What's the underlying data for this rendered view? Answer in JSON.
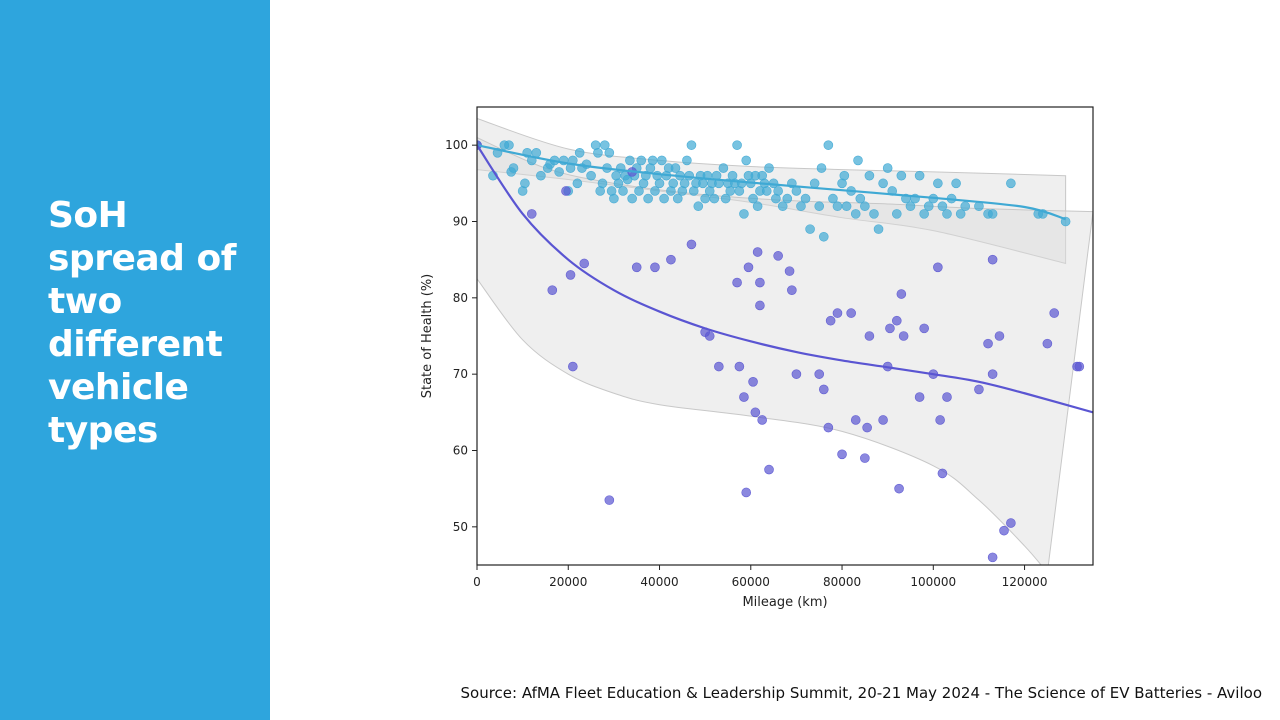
{
  "slide": {
    "title_lines": [
      "SoH",
      "spread of",
      "two",
      "different",
      "vehicle",
      "types"
    ],
    "source": "Source: AfMA Fleet Education & Leadership Summit, 20-21 May 2024 - The Science of EV Batteries - Aviloo"
  },
  "colors": {
    "panel": "#2ea5dd",
    "series_a": "#3fa9d4",
    "series_b": "#5a55d2",
    "band": "#dcdcdc"
  },
  "chart_data": {
    "type": "scatter",
    "xlabel": "Mileage (km)",
    "ylabel": "State of Health (%)",
    "xlim": [
      0,
      135000
    ],
    "ylim": [
      45,
      105
    ],
    "xticks": [
      0,
      20000,
      40000,
      60000,
      80000,
      100000,
      120000
    ],
    "yticks": [
      50,
      60,
      70,
      80,
      90,
      100
    ],
    "grid": false,
    "legend": "none",
    "series": [
      {
        "color": "#3fa9d4",
        "trend": [
          [
            0,
            100
          ],
          [
            20000,
            97.6
          ],
          [
            40000,
            96.2
          ],
          [
            60000,
            95.1
          ],
          [
            80000,
            94.1
          ],
          [
            100000,
            93.1
          ],
          [
            120000,
            91.9
          ],
          [
            129000,
            90.3
          ]
        ],
        "band_upper": [
          [
            0,
            103.5
          ],
          [
            20000,
            99.5
          ],
          [
            40000,
            98
          ],
          [
            60000,
            97.2
          ],
          [
            80000,
            96.8
          ],
          [
            100000,
            96.5
          ],
          [
            129000,
            96
          ]
        ],
        "band_lower": [
          [
            0,
            96.8
          ],
          [
            20000,
            95.5
          ],
          [
            40000,
            94
          ],
          [
            60000,
            92.5
          ],
          [
            80000,
            90.5
          ],
          [
            100000,
            88.8
          ],
          [
            129000,
            84.5
          ]
        ],
        "points": [
          [
            0,
            100
          ],
          [
            3500,
            96
          ],
          [
            4500,
            99
          ],
          [
            6000,
            100
          ],
          [
            7000,
            100
          ],
          [
            7500,
            96.5
          ],
          [
            8000,
            97
          ],
          [
            10000,
            94
          ],
          [
            10500,
            95
          ],
          [
            11000,
            99
          ],
          [
            12000,
            98
          ],
          [
            13000,
            99
          ],
          [
            14000,
            96
          ],
          [
            15500,
            97
          ],
          [
            16000,
            97.5
          ],
          [
            17000,
            98
          ],
          [
            18000,
            96.5
          ],
          [
            19000,
            98
          ],
          [
            20000,
            94
          ],
          [
            20500,
            97
          ],
          [
            21000,
            98
          ],
          [
            22000,
            95
          ],
          [
            22500,
            99
          ],
          [
            23000,
            97
          ],
          [
            24000,
            97.5
          ],
          [
            25000,
            96
          ],
          [
            26000,
            100
          ],
          [
            26500,
            99
          ],
          [
            27000,
            94
          ],
          [
            27500,
            95
          ],
          [
            28000,
            100
          ],
          [
            28500,
            97
          ],
          [
            29000,
            99
          ],
          [
            29500,
            94
          ],
          [
            30000,
            93
          ],
          [
            30500,
            96
          ],
          [
            31000,
            95
          ],
          [
            31500,
            97
          ],
          [
            32000,
            94
          ],
          [
            32500,
            96
          ],
          [
            33000,
            95.5
          ],
          [
            33500,
            98
          ],
          [
            34000,
            93
          ],
          [
            34500,
            96
          ],
          [
            35000,
            97
          ],
          [
            35500,
            94
          ],
          [
            36000,
            98
          ],
          [
            36500,
            95
          ],
          [
            37000,
            96
          ],
          [
            37500,
            93
          ],
          [
            38000,
            97
          ],
          [
            38500,
            98
          ],
          [
            39000,
            94
          ],
          [
            39500,
            96
          ],
          [
            40000,
            95
          ],
          [
            40500,
            98
          ],
          [
            41000,
            93
          ],
          [
            41500,
            96
          ],
          [
            42000,
            97
          ],
          [
            42500,
            94
          ],
          [
            43000,
            95
          ],
          [
            43500,
            97
          ],
          [
            44000,
            93
          ],
          [
            44500,
            96
          ],
          [
            45000,
            94
          ],
          [
            45500,
            95
          ],
          [
            46000,
            98
          ],
          [
            46500,
            96
          ],
          [
            47000,
            100
          ],
          [
            47500,
            94
          ],
          [
            48000,
            95
          ],
          [
            48500,
            92
          ],
          [
            49000,
            96
          ],
          [
            49500,
            95
          ],
          [
            50000,
            93
          ],
          [
            50500,
            96
          ],
          [
            51000,
            94
          ],
          [
            51500,
            95
          ],
          [
            52000,
            93
          ],
          [
            52500,
            96
          ],
          [
            53000,
            95
          ],
          [
            54000,
            97
          ],
          [
            54500,
            93
          ],
          [
            55000,
            95
          ],
          [
            55500,
            94
          ],
          [
            56000,
            96
          ],
          [
            56500,
            95
          ],
          [
            57000,
            100
          ],
          [
            57500,
            94
          ],
          [
            58000,
            95
          ],
          [
            58500,
            91
          ],
          [
            59000,
            98
          ],
          [
            59500,
            96
          ],
          [
            60000,
            95
          ],
          [
            60500,
            93
          ],
          [
            61000,
            96
          ],
          [
            61500,
            92
          ],
          [
            62000,
            94
          ],
          [
            62500,
            96
          ],
          [
            63000,
            95
          ],
          [
            63500,
            94
          ],
          [
            64000,
            97
          ],
          [
            65000,
            95
          ],
          [
            65500,
            93
          ],
          [
            66000,
            94
          ],
          [
            67000,
            92
          ],
          [
            68000,
            93
          ],
          [
            69000,
            95
          ],
          [
            70000,
            94
          ],
          [
            71000,
            92
          ],
          [
            72000,
            93
          ],
          [
            73000,
            89
          ],
          [
            74000,
            95
          ],
          [
            75000,
            92
          ],
          [
            75500,
            97
          ],
          [
            76000,
            88
          ],
          [
            77000,
            100
          ],
          [
            78000,
            93
          ],
          [
            79000,
            92
          ],
          [
            80000,
            95
          ],
          [
            80500,
            96
          ],
          [
            81000,
            92
          ],
          [
            82000,
            94
          ],
          [
            83000,
            91
          ],
          [
            83500,
            98
          ],
          [
            84000,
            93
          ],
          [
            85000,
            92
          ],
          [
            86000,
            96
          ],
          [
            87000,
            91
          ],
          [
            88000,
            89
          ],
          [
            89000,
            95
          ],
          [
            90000,
            97
          ],
          [
            91000,
            94
          ],
          [
            92000,
            91
          ],
          [
            93000,
            96
          ],
          [
            94000,
            93
          ],
          [
            95000,
            92
          ],
          [
            96000,
            93
          ],
          [
            97000,
            96
          ],
          [
            98000,
            91
          ],
          [
            99000,
            92
          ],
          [
            100000,
            93
          ],
          [
            101000,
            95
          ],
          [
            102000,
            92
          ],
          [
            103000,
            91
          ],
          [
            104000,
            93
          ],
          [
            105000,
            95
          ],
          [
            106000,
            91
          ],
          [
            107000,
            92
          ],
          [
            110000,
            92
          ],
          [
            112000,
            91
          ],
          [
            113000,
            91
          ],
          [
            117000,
            95
          ],
          [
            123000,
            91
          ],
          [
            124000,
            91
          ],
          [
            129000,
            90
          ]
        ]
      },
      {
        "color": "#5a55d2",
        "trend": [
          [
            0,
            100
          ],
          [
            10000,
            91
          ],
          [
            20000,
            85
          ],
          [
            30000,
            81
          ],
          [
            40000,
            78.2
          ],
          [
            50000,
            76
          ],
          [
            60000,
            74.3
          ],
          [
            70000,
            72.9
          ],
          [
            80000,
            71.8
          ],
          [
            90000,
            70.9
          ],
          [
            100000,
            70
          ],
          [
            110000,
            69
          ],
          [
            120000,
            67.5
          ],
          [
            135000,
            65
          ]
        ],
        "band_upper": [
          [
            0,
            101
          ],
          [
            15000,
            97
          ],
          [
            30000,
            95
          ],
          [
            50000,
            93.5
          ],
          [
            70000,
            92.7
          ],
          [
            90000,
            92.3
          ],
          [
            110000,
            91.7
          ],
          [
            135000,
            91.3
          ]
        ],
        "band_lower": [
          [
            0,
            82.5
          ],
          [
            10000,
            74.5
          ],
          [
            20000,
            70
          ],
          [
            30000,
            67.5
          ],
          [
            40000,
            66
          ],
          [
            60000,
            64.5
          ],
          [
            80000,
            62.5
          ],
          [
            100000,
            58
          ],
          [
            110000,
            53.5
          ],
          [
            120000,
            47.5
          ],
          [
            125000,
            44
          ]
        ],
        "points": [
          [
            0,
            100
          ],
          [
            12000,
            91
          ],
          [
            16500,
            81
          ],
          [
            19500,
            94
          ],
          [
            20500,
            83
          ],
          [
            21000,
            71
          ],
          [
            23500,
            84.5
          ],
          [
            29000,
            53.5
          ],
          [
            34000,
            96.5
          ],
          [
            35000,
            84
          ],
          [
            39000,
            84
          ],
          [
            42500,
            85
          ],
          [
            47000,
            87
          ],
          [
            50000,
            75.5
          ],
          [
            51000,
            75
          ],
          [
            53000,
            71
          ],
          [
            57000,
            82
          ],
          [
            57500,
            71
          ],
          [
            58500,
            67
          ],
          [
            59000,
            54.5
          ],
          [
            59500,
            84
          ],
          [
            60500,
            69
          ],
          [
            61000,
            65
          ],
          [
            61500,
            86
          ],
          [
            62000,
            82
          ],
          [
            62000,
            79
          ],
          [
            62500,
            64
          ],
          [
            64000,
            57.5
          ],
          [
            66000,
            85.5
          ],
          [
            68500,
            83.5
          ],
          [
            69000,
            81
          ],
          [
            70000,
            70
          ],
          [
            75000,
            70
          ],
          [
            76000,
            68
          ],
          [
            77000,
            63
          ],
          [
            77500,
            77
          ],
          [
            79000,
            78
          ],
          [
            80000,
            59.5
          ],
          [
            82000,
            78
          ],
          [
            83000,
            64
          ],
          [
            85000,
            59
          ],
          [
            85500,
            63
          ],
          [
            86000,
            75
          ],
          [
            89000,
            64
          ],
          [
            90000,
            71
          ],
          [
            90500,
            76
          ],
          [
            92000,
            77
          ],
          [
            92500,
            55
          ],
          [
            93000,
            80.5
          ],
          [
            93500,
            75
          ],
          [
            97000,
            67
          ],
          [
            98000,
            76
          ],
          [
            100000,
            70
          ],
          [
            101000,
            84
          ],
          [
            101500,
            64
          ],
          [
            102000,
            57
          ],
          [
            103000,
            67
          ],
          [
            110000,
            68
          ],
          [
            112000,
            74
          ],
          [
            113000,
            70
          ],
          [
            113000,
            46
          ],
          [
            113000,
            85
          ],
          [
            114500,
            75
          ],
          [
            115500,
            49.5
          ],
          [
            117000,
            50.5
          ],
          [
            125000,
            74
          ],
          [
            126500,
            78
          ],
          [
            131500,
            71
          ],
          [
            132000,
            71
          ]
        ]
      }
    ]
  }
}
